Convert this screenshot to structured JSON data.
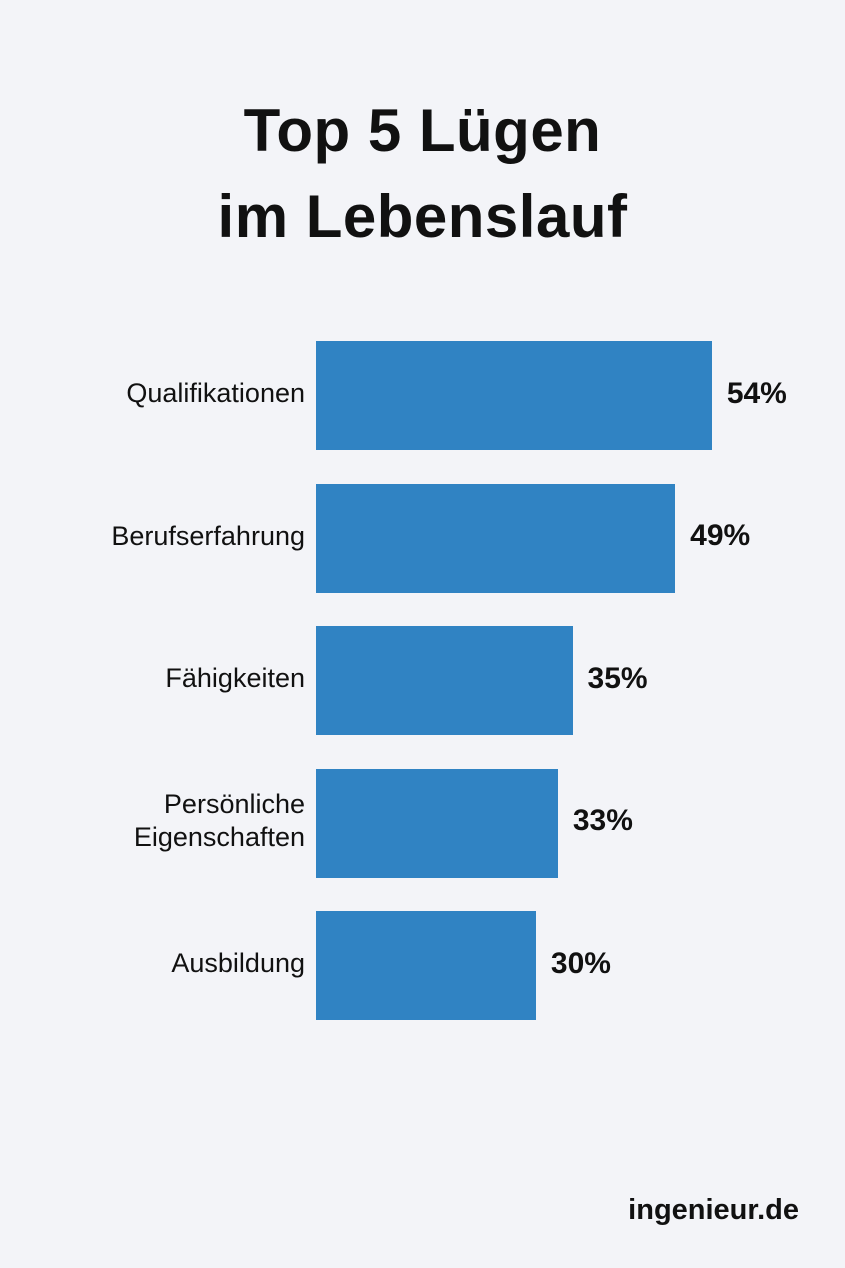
{
  "chart_data": {
    "type": "bar",
    "orientation": "horizontal",
    "title": [
      "Top 5 Lügen",
      "im Lebenslauf"
    ],
    "categories": [
      "Qualifikationen",
      "Berufserfahrung",
      "Fähigkeiten",
      "Persönliche Eigenschaften",
      "Ausbildung"
    ],
    "category_lines": [
      [
        "Qualifikationen"
      ],
      [
        "Berufserfahrung"
      ],
      [
        "Fähigkeiten"
      ],
      [
        "Persönliche",
        "Eigenschaften"
      ],
      [
        "Ausbildung"
      ]
    ],
    "values": [
      54,
      49,
      35,
      33,
      30
    ],
    "value_labels": [
      "54%",
      "49%",
      "35%",
      "33%",
      "30%"
    ],
    "unit": "%",
    "xlabel": "",
    "ylabel": "",
    "grid": false,
    "bar_color": "#3083c3",
    "background": "#f3f4f8"
  },
  "footer": {
    "source": "ingenieur.de"
  }
}
